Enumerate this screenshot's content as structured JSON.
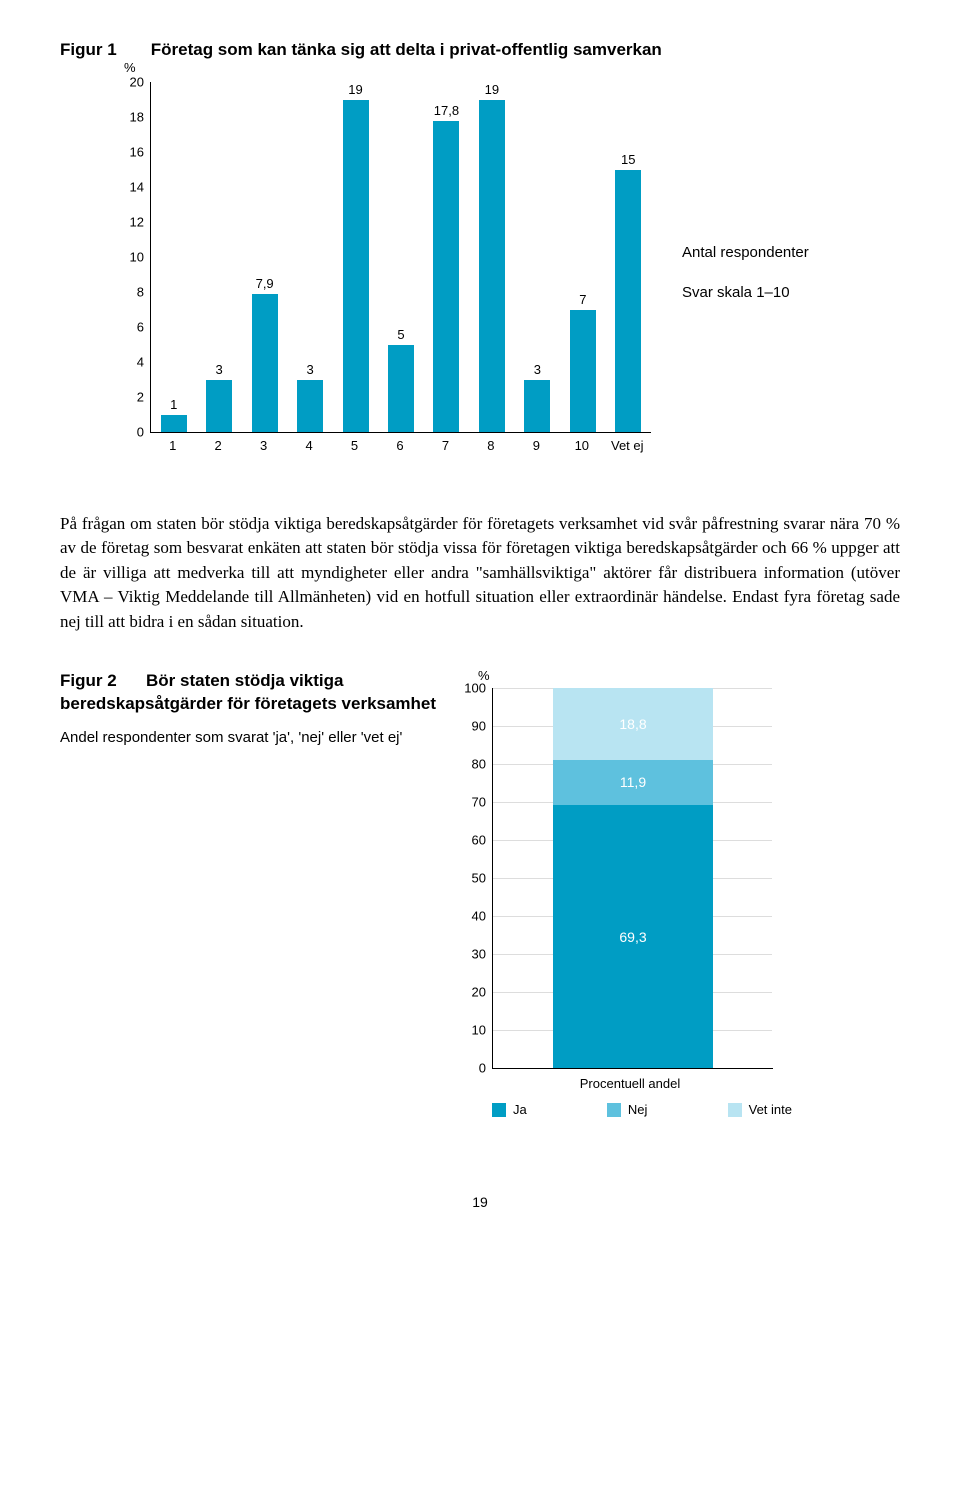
{
  "figure1": {
    "label": "Figur 1",
    "title": "Företag som kan tänka sig att delta i privat-offentlig samverkan",
    "y_unit": "%",
    "y_ticks": [
      0,
      2,
      4,
      6,
      8,
      10,
      12,
      14,
      16,
      18,
      20
    ],
    "y_max": 20,
    "categories": [
      "1",
      "2",
      "3",
      "4",
      "5",
      "6",
      "7",
      "8",
      "9",
      "10",
      "Vet ej"
    ],
    "values": [
      1,
      3,
      7.9,
      3,
      19,
      5,
      17.8,
      19,
      3,
      7,
      15
    ],
    "value_labels": [
      "1",
      "3",
      "7,9",
      "3",
      "19",
      "5",
      "17,8",
      "19",
      "3",
      "7",
      "15"
    ],
    "bar_color": "#009dc4",
    "legend1": "Antal respondenter",
    "legend2": "Svar skala 1–10"
  },
  "body_paragraph": "På frågan om staten bör stödja viktiga beredskapsåtgärder för företagets verksamhet vid svår påfrestning svarar nära 70 % av de företag som besvarat enkäten att staten bör stödja vissa för företagen viktiga beredskapsåtgärder och 66 % uppger att de är villiga att medverka till att myndigheter eller andra \"samhällsviktiga\" aktörer får distribuera information (utöver VMA – Viktig Meddelande till Allmänheten) vid en hotfull situation eller extraordinär händelse. Endast fyra företag sade nej till att bidra i en sådan situation.",
  "figure2": {
    "label": "Figur 2",
    "title_rest": "Bör staten stödja viktiga beredskapsåtgärder för företagets verksamhet",
    "subtitle": "Andel respondenter som svarat 'ja', 'nej' eller 'vet ej'",
    "y_unit": "%",
    "y_ticks": [
      0,
      10,
      20,
      30,
      40,
      50,
      60,
      70,
      80,
      90,
      100
    ],
    "y_max": 100,
    "x_category": "Procentuell andel",
    "segments": [
      {
        "label": "Ja",
        "value": 69.3,
        "display": "69,3",
        "color": "#009dc4"
      },
      {
        "label": "Nej",
        "value": 11.9,
        "display": "11,9",
        "color": "#5ec1de"
      },
      {
        "label": "Vet inte",
        "value": 18.8,
        "display": "18,8",
        "color": "#b8e4f2"
      }
    ],
    "legend": [
      "Ja",
      "Nej",
      "Vet inte"
    ],
    "legend_colors": [
      "#009dc4",
      "#5ec1de",
      "#b8e4f2"
    ]
  },
  "page_number": "19"
}
